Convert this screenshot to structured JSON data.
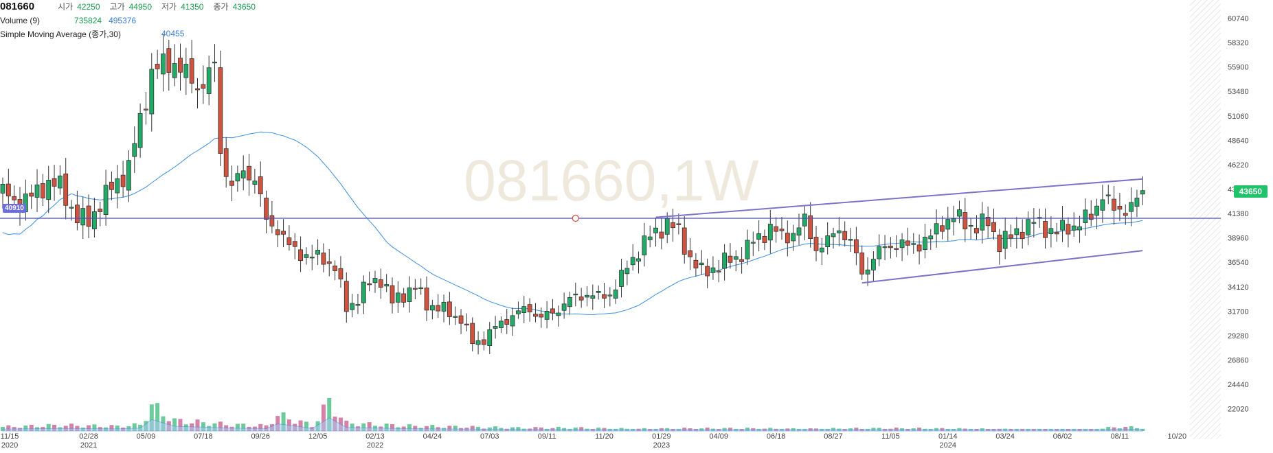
{
  "header": {
    "symbol": "081660",
    "open_label": "시가",
    "open": "42250",
    "high_label": "고가",
    "high": "44950",
    "low_label": "저가",
    "low": "41350",
    "close_label": "종가",
    "close": "43650",
    "volume_label": "Volume (9)",
    "volume_value": "735824",
    "volume_ma_value": "495376",
    "sma_label": "Simple Moving Average (종가,30)",
    "sma_value": "40455"
  },
  "watermark": "081660,1W",
  "last_price_tag": "43650",
  "level_tag": "40910",
  "colors": {
    "up": "#22ab66",
    "down": "#d0533f",
    "sma": "#3b8ee0",
    "level": "#4b4bcc",
    "channel": "#7b73c9",
    "volume_area": "#a9c8ef"
  },
  "chart_data": {
    "type": "candlestick",
    "y_axis": {
      "side": "right",
      "ylim": [
        19000,
        62000
      ],
      "ticks": [
        60740,
        58320,
        55900,
        53480,
        51060,
        48640,
        46220,
        43800,
        41380,
        38960,
        36540,
        34120,
        31700,
        29280,
        26860,
        24440,
        22020
      ]
    },
    "x_axis": {
      "ticks": [
        {
          "label": "11/15",
          "sub": "2020",
          "week": 0
        },
        {
          "label": "02/28",
          "sub": "2021",
          "week": 15
        },
        {
          "label": "05/09",
          "sub": "",
          "week": 25
        },
        {
          "label": "07/18",
          "sub": "",
          "week": 35
        },
        {
          "label": "09/26",
          "sub": "",
          "week": 45
        },
        {
          "label": "12/05",
          "sub": "",
          "week": 55
        },
        {
          "label": "02/13",
          "sub": "2022",
          "week": 65
        },
        {
          "label": "04/24",
          "sub": "",
          "week": 75
        },
        {
          "label": "07/03",
          "sub": "",
          "week": 85
        },
        {
          "label": "09/11",
          "sub": "",
          "week": 95
        },
        {
          "label": "11/20",
          "sub": "",
          "week": 105
        },
        {
          "label": "01/29",
          "sub": "2023",
          "week": 115
        },
        {
          "label": "04/09",
          "sub": "",
          "week": 125
        },
        {
          "label": "06/18",
          "sub": "",
          "week": 135
        },
        {
          "label": "08/27",
          "sub": "",
          "week": 145
        },
        {
          "label": "11/05",
          "sub": "",
          "week": 155
        },
        {
          "label": "01/14",
          "sub": "2024",
          "week": 165
        },
        {
          "label": "03/24",
          "sub": "",
          "week": 175
        },
        {
          "label": "06/02",
          "sub": "",
          "week": 185
        },
        {
          "label": "08/11",
          "sub": "",
          "week": 195
        },
        {
          "label": "10/20",
          "sub": "",
          "week": 205
        }
      ]
    },
    "anchors": [
      [
        0,
        43500
      ],
      [
        2,
        42500
      ],
      [
        5,
        43000
      ],
      [
        8,
        44500
      ],
      [
        10,
        44000
      ],
      [
        13,
        41000
      ],
      [
        15,
        40500
      ],
      [
        17,
        42500
      ],
      [
        20,
        44500
      ],
      [
        22,
        46000
      ],
      [
        24,
        50500
      ],
      [
        26,
        55500
      ],
      [
        28,
        56000
      ],
      [
        30,
        56500
      ],
      [
        32,
        55000
      ],
      [
        34,
        54000
      ],
      [
        36,
        55000
      ],
      [
        37,
        56000
      ],
      [
        38,
        47500
      ],
      [
        40,
        44000
      ],
      [
        42,
        45500
      ],
      [
        44,
        45000
      ],
      [
        46,
        40500
      ],
      [
        48,
        40000
      ],
      [
        50,
        38000
      ],
      [
        52,
        37500
      ],
      [
        54,
        37000
      ],
      [
        56,
        37000
      ],
      [
        58,
        36000
      ],
      [
        60,
        32000
      ],
      [
        62,
        33000
      ],
      [
        64,
        34500
      ],
      [
        66,
        35000
      ],
      [
        68,
        32500
      ],
      [
        70,
        33500
      ],
      [
        72,
        34000
      ],
      [
        74,
        32500
      ],
      [
        76,
        32000
      ],
      [
        78,
        31500
      ],
      [
        80,
        31000
      ],
      [
        82,
        28500
      ],
      [
        84,
        29000
      ],
      [
        86,
        30000
      ],
      [
        88,
        31000
      ],
      [
        90,
        31500
      ],
      [
        92,
        32000
      ],
      [
        94,
        31000
      ],
      [
        96,
        31500
      ],
      [
        98,
        32500
      ],
      [
        100,
        33000
      ],
      [
        102,
        33500
      ],
      [
        104,
        33000
      ],
      [
        106,
        33500
      ],
      [
        108,
        35000
      ],
      [
        110,
        37000
      ],
      [
        112,
        38500
      ],
      [
        114,
        39500
      ],
      [
        116,
        40500
      ],
      [
        118,
        39500
      ],
      [
        120,
        37000
      ],
      [
        122,
        35500
      ],
      [
        124,
        36000
      ],
      [
        126,
        36500
      ],
      [
        128,
        37000
      ],
      [
        130,
        38000
      ],
      [
        132,
        39000
      ],
      [
        134,
        40000
      ],
      [
        136,
        39000
      ],
      [
        138,
        39500
      ],
      [
        140,
        40500
      ],
      [
        142,
        38000
      ],
      [
        144,
        38500
      ],
      [
        146,
        40000
      ],
      [
        148,
        38500
      ],
      [
        150,
        35500
      ],
      [
        152,
        37000
      ],
      [
        154,
        38000
      ],
      [
        156,
        38500
      ],
      [
        158,
        38000
      ],
      [
        160,
        38500
      ],
      [
        162,
        39000
      ],
      [
        164,
        40500
      ],
      [
        166,
        41000
      ],
      [
        168,
        40500
      ],
      [
        170,
        40000
      ],
      [
        172,
        40500
      ],
      [
        174,
        38500
      ],
      [
        176,
        39000
      ],
      [
        178,
        40000
      ],
      [
        180,
        40500
      ],
      [
        182,
        40000
      ],
      [
        184,
        39500
      ],
      [
        186,
        40000
      ],
      [
        188,
        40500
      ],
      [
        190,
        41000
      ],
      [
        192,
        43500
      ],
      [
        194,
        41500
      ],
      [
        196,
        42000
      ],
      [
        198,
        42500
      ],
      [
        199,
        43650
      ]
    ],
    "volume_ylim": [
      0,
      100
    ],
    "volume_anchors": [
      [
        0,
        8
      ],
      [
        10,
        11
      ],
      [
        20,
        9
      ],
      [
        24,
        12
      ],
      [
        26,
        48
      ],
      [
        30,
        20
      ],
      [
        40,
        12
      ],
      [
        46,
        10
      ],
      [
        48,
        30
      ],
      [
        52,
        18
      ],
      [
        54,
        10
      ],
      [
        57,
        55
      ],
      [
        60,
        15
      ],
      [
        70,
        10
      ],
      [
        80,
        8
      ],
      [
        90,
        6
      ],
      [
        100,
        6
      ],
      [
        110,
        4
      ],
      [
        120,
        5
      ],
      [
        130,
        5
      ],
      [
        140,
        4
      ],
      [
        150,
        5
      ],
      [
        160,
        5
      ],
      [
        170,
        4
      ],
      [
        180,
        3
      ],
      [
        190,
        3
      ],
      [
        195,
        8
      ],
      [
        199,
        6
      ]
    ],
    "sma_period": 30,
    "horizontal_level": 40910,
    "channel_upper": {
      "from": [
        114,
        41000
      ],
      "to": [
        199,
        44800
      ]
    },
    "channel_lower": {
      "from": [
        150,
        34500
      ],
      "to": [
        199,
        37700
      ]
    },
    "marker": {
      "week": 100,
      "price": 40910
    }
  }
}
